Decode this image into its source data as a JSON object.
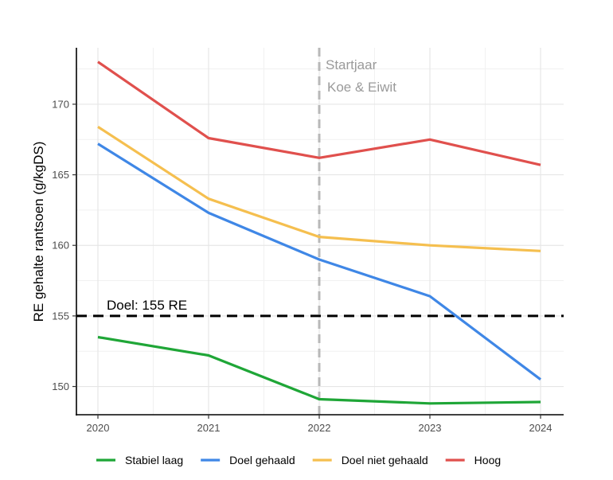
{
  "chart_data": {
    "type": "line",
    "title": "",
    "xlabel": "",
    "ylabel": "RE gehalte rantsoen (g/kgDS)",
    "x": [
      2020,
      2021,
      2022,
      2023,
      2024
    ],
    "x_tick_labels": [
      "2020",
      "2021",
      "2022",
      "2023",
      "2024"
    ],
    "ylim": [
      148,
      174
    ],
    "y_ticks": [
      150,
      155,
      160,
      165,
      170
    ],
    "y_tick_labels": [
      "150",
      "155",
      "160",
      "165",
      "170"
    ],
    "grid": true,
    "legend_position": "bottom",
    "series": [
      {
        "name": "Stabiel laag",
        "color": "#1fa637",
        "values": [
          153.5,
          152.2,
          149.1,
          148.8,
          148.9
        ]
      },
      {
        "name": "Doel gehaald",
        "color": "#3f87e6",
        "values": [
          167.2,
          162.3,
          159.0,
          156.4,
          150.5
        ]
      },
      {
        "name": "Doel niet gehaald",
        "color": "#f5bf4f",
        "values": [
          168.4,
          163.3,
          160.6,
          160.0,
          159.6
        ]
      },
      {
        "name": "Hoog",
        "color": "#e0504d",
        "values": [
          173.0,
          167.6,
          166.2,
          167.5,
          165.7
        ]
      }
    ],
    "reference_lines": [
      {
        "orientation": "horizontal",
        "value": 155,
        "label": "Doel: 155 RE",
        "color": "#000000",
        "style": "dashed"
      },
      {
        "orientation": "vertical",
        "value": 2022,
        "label_line1": "Startjaar",
        "label_line2": "Koe & Eiwit",
        "color": "#b8b8b8",
        "style": "dashed"
      }
    ]
  }
}
